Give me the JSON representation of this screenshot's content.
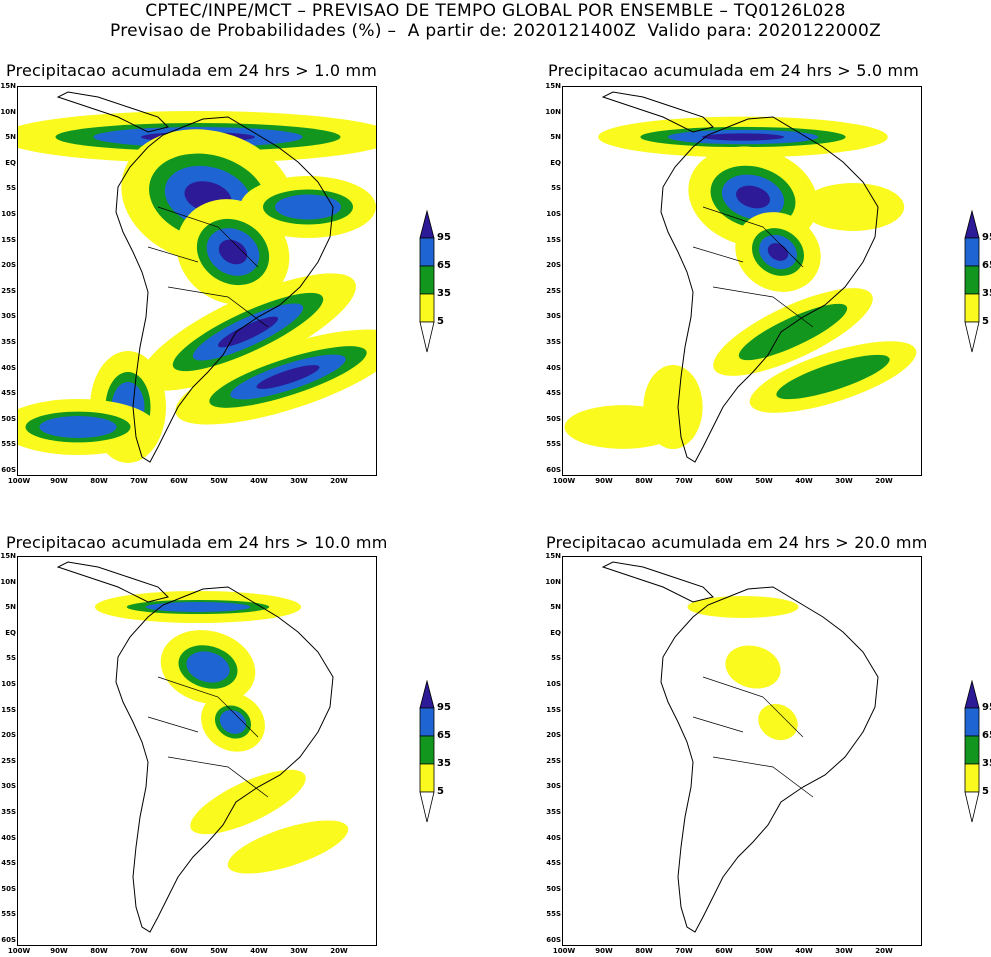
{
  "header": {
    "line1": "CPTEC/INPE/MCT – PREVISAO DE TEMPO GLOBAL POR ENSEMBLE – TQ0126L028",
    "line2": "Previsao de Probabilidades (%) –  A partir de: 2020121400Z  Valido para: 2020122000Z"
  },
  "axes": {
    "lat_labels": [
      "15N",
      "10N",
      "5N",
      "EQ",
      "5S",
      "10S",
      "15S",
      "20S",
      "25S",
      "30S",
      "35S",
      "40S",
      "45S",
      "50S",
      "55S",
      "60S"
    ],
    "lon_labels": [
      "100W",
      "90W",
      "80W",
      "70W",
      "60W",
      "50W",
      "40W",
      "30W",
      "20W"
    ]
  },
  "colorbar": {
    "levels": [
      "95",
      "65",
      "35",
      "5"
    ],
    "colors": {
      "dark_blue": "#2d1a96",
      "blue": "#1e64d2",
      "green": "#12961e",
      "yellow": "#fafa1e"
    }
  },
  "panels": [
    {
      "title": "Precipitacao acumulada em 24 hrs > 1.0 mm",
      "intensity": 1.0
    },
    {
      "title": "Precipitacao acumulada em 24 hrs > 5.0 mm",
      "intensity": 0.72
    },
    {
      "title": "Precipitacao acumulada em 24 hrs > 10.0 mm",
      "intensity": 0.5
    },
    {
      "title": "Precipitacao acumulada em 24 hrs > 20.0 mm",
      "intensity": 0.25
    }
  ]
}
